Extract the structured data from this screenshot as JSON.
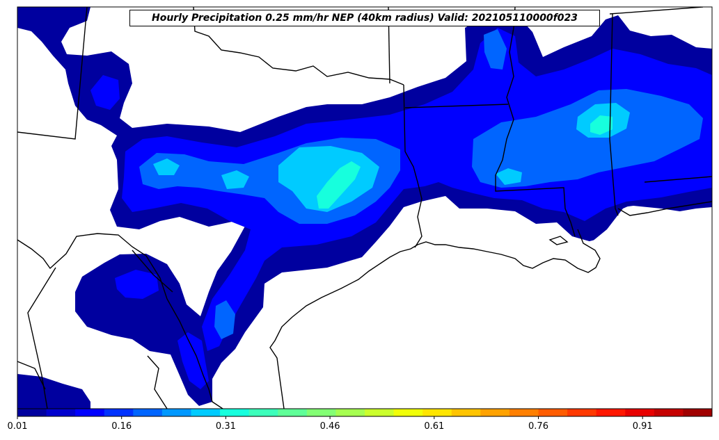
{
  "title": "Hourly Precipitation 0.25 mm/hr NEP (40km radius) Valid: 202105110000f023",
  "colorbar": {
    "tick_labels": [
      "0.01",
      "0.16",
      "0.31",
      "0.46",
      "0.61",
      "0.76",
      "0.91"
    ],
    "tick_values": [
      0.01,
      0.16,
      0.31,
      0.46,
      0.61,
      0.76,
      0.91
    ],
    "range": [
      0.01,
      1.01
    ],
    "colors": [
      "#00009f",
      "#0000ce",
      "#0000ff",
      "#0032ff",
      "#0065ff",
      "#0098ff",
      "#00cbff",
      "#17ffdd",
      "#3cffbb",
      "#5fff98",
      "#83ff74",
      "#a6ff50",
      "#cbff2c",
      "#f1ff08",
      "#ffe500",
      "#ffc400",
      "#ffa200",
      "#ff7f00",
      "#ff5c00",
      "#ff3900",
      "#ff1700",
      "#e80000",
      "#c50000",
      "#a00000"
    ]
  },
  "legend_colors": {
    "level_1": "#00009f",
    "level_2": "#0000ff",
    "level_3": "#0065ff",
    "level_4": "#00cbff",
    "level_5": "#17ffdd"
  }
}
